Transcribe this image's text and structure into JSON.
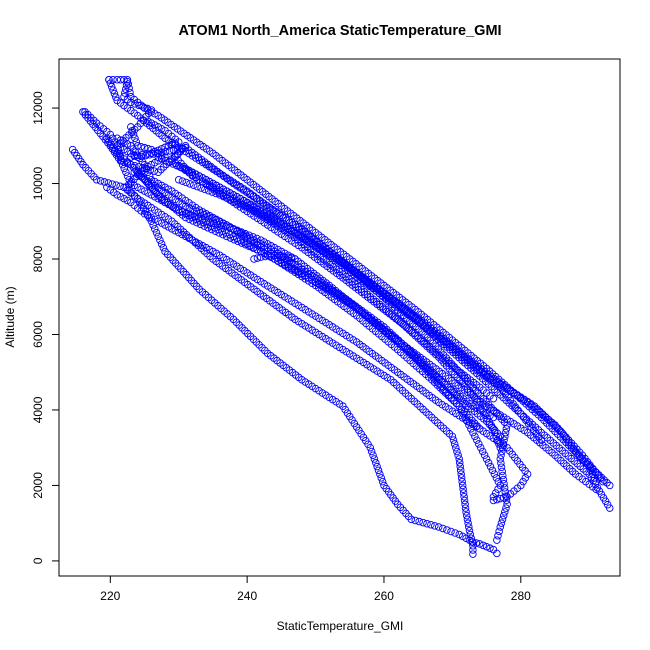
{
  "chart_data": {
    "type": "scatter",
    "title": "ATOM1 North_America StaticTemperature_GMI",
    "xlabel": "StaticTemperature_GMI",
    "ylabel": "Altitude (m)",
    "xlim": [
      212.5,
      294.5
    ],
    "ylim": [
      -400,
      13300
    ],
    "xticks": [
      220,
      240,
      260,
      280
    ],
    "yticks": [
      0,
      2000,
      4000,
      6000,
      8000,
      10000,
      12000
    ],
    "grid": false,
    "marker": "open-circle",
    "color": "#0000ff",
    "series": [
      {
        "points": [
          [
            219.8,
            12750
          ],
          [
            221,
            12750
          ],
          [
            222.5,
            12750
          ],
          [
            223,
            12300
          ],
          [
            225,
            12000
          ],
          [
            227,
            11800
          ],
          [
            235,
            10800
          ],
          [
            245,
            9400
          ],
          [
            255,
            8000
          ],
          [
            265,
            6600
          ],
          [
            275,
            5100
          ],
          [
            283,
            3800
          ],
          [
            289,
            2700
          ],
          [
            293,
            2000
          ]
        ]
      },
      {
        "points": [
          [
            219.8,
            12750
          ],
          [
            221,
            12200
          ],
          [
            224,
            11800
          ],
          [
            228,
            11200
          ],
          [
            240,
            9800
          ],
          [
            252,
            8200
          ],
          [
            264,
            6500
          ],
          [
            274,
            4900
          ],
          [
            283,
            3400
          ],
          [
            290,
            2300
          ],
          [
            293,
            1400
          ]
        ]
      },
      {
        "points": [
          [
            222.5,
            12700
          ],
          [
            222,
            12300
          ],
          [
            223,
            12150
          ],
          [
            226,
            11950
          ],
          [
            224,
            11500
          ],
          [
            221,
            11000
          ],
          [
            224,
            10700
          ],
          [
            231,
            10950
          ],
          [
            238,
            10000
          ],
          [
            248,
            8800
          ],
          [
            258,
            7300
          ],
          [
            266,
            6000
          ],
          [
            273,
            4600
          ],
          [
            278,
            3600
          ],
          [
            277,
            2700
          ],
          [
            278,
            1500
          ],
          [
            277,
            900
          ],
          [
            276.5,
            550
          ]
        ]
      },
      {
        "points": [
          [
            216.3,
            11900
          ],
          [
            218,
            11600
          ],
          [
            220,
            11300
          ],
          [
            221,
            11000
          ],
          [
            221.8,
            10500
          ],
          [
            223,
            10000
          ],
          [
            226,
            9700
          ],
          [
            230,
            9300
          ],
          [
            234,
            9000
          ],
          [
            238,
            8800
          ],
          [
            242,
            8500
          ],
          [
            247,
            8000
          ],
          [
            252,
            7300
          ],
          [
            258,
            6400
          ],
          [
            263,
            5700
          ],
          [
            268,
            4700
          ],
          [
            271,
            4100
          ],
          [
            273,
            3400
          ],
          [
            275,
            2700
          ],
          [
            277,
            2000
          ],
          [
            276,
            1700
          ]
        ]
      },
      {
        "points": [
          [
            216,
            11900
          ],
          [
            220,
            11000
          ],
          [
            221.5,
            10600
          ],
          [
            223,
            10500
          ],
          [
            227,
            10300
          ],
          [
            231,
            11000
          ],
          [
            229.5,
            10700
          ],
          [
            232,
            10200
          ],
          [
            238,
            9600
          ],
          [
            246,
            8700
          ],
          [
            254,
            7600
          ],
          [
            262,
            6400
          ],
          [
            268,
            5400
          ],
          [
            273,
            4400
          ],
          [
            276,
            3500
          ],
          [
            277,
            3000
          ]
        ]
      },
      {
        "points": [
          [
            214.5,
            10900
          ],
          [
            216,
            10500
          ],
          [
            218,
            10100
          ],
          [
            222,
            9900
          ],
          [
            224,
            9600
          ],
          [
            226,
            9000
          ],
          [
            228,
            8200
          ],
          [
            233,
            7200
          ],
          [
            238,
            6400
          ],
          [
            243,
            5500
          ],
          [
            248,
            4800
          ],
          [
            254,
            4100
          ],
          [
            258,
            3000
          ],
          [
            259,
            2500
          ],
          [
            260,
            2000
          ],
          [
            262,
            1500
          ],
          [
            264,
            1100
          ],
          [
            268,
            900
          ],
          [
            271,
            700
          ],
          [
            273,
            500
          ],
          [
            274,
            450
          ],
          [
            276,
            300
          ],
          [
            276.5,
            200
          ]
        ]
      },
      {
        "points": [
          [
            223,
            11500
          ],
          [
            224,
            11000
          ],
          [
            226,
            10900
          ],
          [
            228,
            10700
          ],
          [
            225,
            10400
          ],
          [
            222.3,
            9900
          ],
          [
            224,
            9600
          ],
          [
            229,
            9000
          ],
          [
            235,
            8000
          ],
          [
            241,
            7200
          ],
          [
            247,
            6400
          ],
          [
            254,
            5600
          ],
          [
            261,
            4800
          ],
          [
            267,
            3800
          ],
          [
            270,
            3300
          ],
          [
            271,
            2700
          ],
          [
            271.5,
            2000
          ],
          [
            272,
            1300
          ],
          [
            272.5,
            800
          ],
          [
            273,
            400
          ],
          [
            273,
            180
          ]
        ]
      },
      {
        "points": [
          [
            219.5,
            11200
          ],
          [
            221,
            10800
          ],
          [
            223,
            10500
          ],
          [
            225,
            10100
          ],
          [
            227,
            9700
          ],
          [
            231,
            9100
          ],
          [
            237,
            8600
          ],
          [
            242,
            8200
          ],
          [
            248,
            7600
          ],
          [
            254,
            7000
          ],
          [
            260,
            6200
          ],
          [
            266,
            5200
          ],
          [
            271,
            4300
          ],
          [
            275,
            3700
          ],
          [
            277,
            3300
          ]
        ]
      },
      {
        "points": [
          [
            219.5,
            9900
          ],
          [
            221,
            9700
          ],
          [
            223,
            9500
          ],
          [
            225,
            9200
          ],
          [
            230,
            8700
          ],
          [
            236,
            8100
          ],
          [
            242,
            7400
          ],
          [
            249,
            6600
          ],
          [
            256,
            5800
          ],
          [
            262,
            5000
          ],
          [
            268,
            4200
          ],
          [
            274,
            3500
          ],
          [
            278,
            3000
          ],
          [
            281,
            2300
          ],
          [
            280,
            2000
          ],
          [
            278,
            1700
          ],
          [
            276,
            1600
          ]
        ]
      },
      {
        "points": [
          [
            221,
            11200
          ],
          [
            223,
            11000
          ],
          [
            225,
            10500
          ],
          [
            226,
            10100
          ],
          [
            229,
            9800
          ],
          [
            233,
            9300
          ],
          [
            238,
            8800
          ],
          [
            244,
            8200
          ],
          [
            250,
            7500
          ],
          [
            256,
            6700
          ],
          [
            262,
            5800
          ],
          [
            268,
            4800
          ],
          [
            273,
            4100
          ],
          [
            276,
            3800
          ]
        ]
      },
      {
        "points": [
          [
            224,
            10300
          ],
          [
            226,
            9900
          ],
          [
            228,
            9500
          ],
          [
            232,
            9100
          ],
          [
            238,
            8600
          ],
          [
            244,
            8000
          ],
          [
            250,
            7300
          ],
          [
            256,
            6500
          ],
          [
            262,
            5600
          ],
          [
            267,
            4800
          ],
          [
            271,
            4100
          ],
          [
            274,
            3500
          ]
        ]
      },
      {
        "points": [
          [
            230,
            10100
          ],
          [
            236,
            9700
          ],
          [
            242,
            9200
          ],
          [
            248,
            8600
          ],
          [
            254,
            7900
          ],
          [
            260,
            7100
          ],
          [
            266,
            6300
          ],
          [
            272,
            5400
          ],
          [
            277,
            4700
          ],
          [
            282,
            4100
          ],
          [
            286,
            3400
          ],
          [
            288,
            2900
          ],
          [
            290,
            2500
          ],
          [
            291,
            2100
          ]
        ]
      },
      {
        "points": [
          [
            223.5,
            10300
          ],
          [
            226,
            10000
          ],
          [
            231,
            9400
          ],
          [
            237,
            8900
          ],
          [
            243,
            8200
          ],
          [
            249,
            7500
          ],
          [
            256,
            6700
          ],
          [
            263,
            5700
          ],
          [
            269,
            4900
          ],
          [
            275,
            4100
          ],
          [
            281,
            3400
          ],
          [
            285,
            2800
          ],
          [
            288,
            2300
          ],
          [
            291,
            1900
          ]
        ]
      },
      {
        "points": [
          [
            227,
            10700
          ],
          [
            233,
            10200
          ],
          [
            239,
            9600
          ],
          [
            245,
            8900
          ],
          [
            251,
            8200
          ],
          [
            257,
            7400
          ],
          [
            263,
            6600
          ],
          [
            269,
            5800
          ],
          [
            275,
            4900
          ],
          [
            281,
            4200
          ],
          [
            285,
            3600
          ],
          [
            289,
            2800
          ],
          [
            292,
            2100
          ]
        ]
      },
      {
        "points": [
          [
            231,
            10400
          ],
          [
            236,
            9900
          ],
          [
            241,
            9400
          ],
          [
            247,
            8700
          ],
          [
            253,
            8000
          ],
          [
            259,
            7200
          ],
          [
            265,
            6400
          ],
          [
            270,
            5600
          ],
          [
            274,
            5000
          ],
          [
            277,
            4600
          ],
          [
            280,
            3900
          ],
          [
            283,
            3200
          ]
        ]
      },
      {
        "points": [
          [
            241,
            8000
          ],
          [
            242,
            8050
          ],
          [
            244,
            8100
          ],
          [
            246,
            8050
          ],
          [
            247,
            8000
          ]
        ]
      },
      {
        "points": [
          [
            225.5,
            11650
          ],
          [
            228,
            11400
          ],
          [
            230,
            11100
          ],
          [
            228.5,
            11000
          ],
          [
            226,
            10800
          ],
          [
            224,
            10750
          ],
          [
            223,
            10700
          ]
        ]
      },
      {
        "points": [
          [
            229,
            10600
          ],
          [
            233,
            10100
          ],
          [
            238,
            9500
          ],
          [
            243,
            8900
          ],
          [
            248,
            8300
          ],
          [
            254,
            7500
          ],
          [
            259,
            6800
          ],
          [
            264,
            6100
          ],
          [
            269,
            5300
          ],
          [
            274,
            4600
          ],
          [
            276,
            4300
          ]
        ]
      }
    ]
  }
}
